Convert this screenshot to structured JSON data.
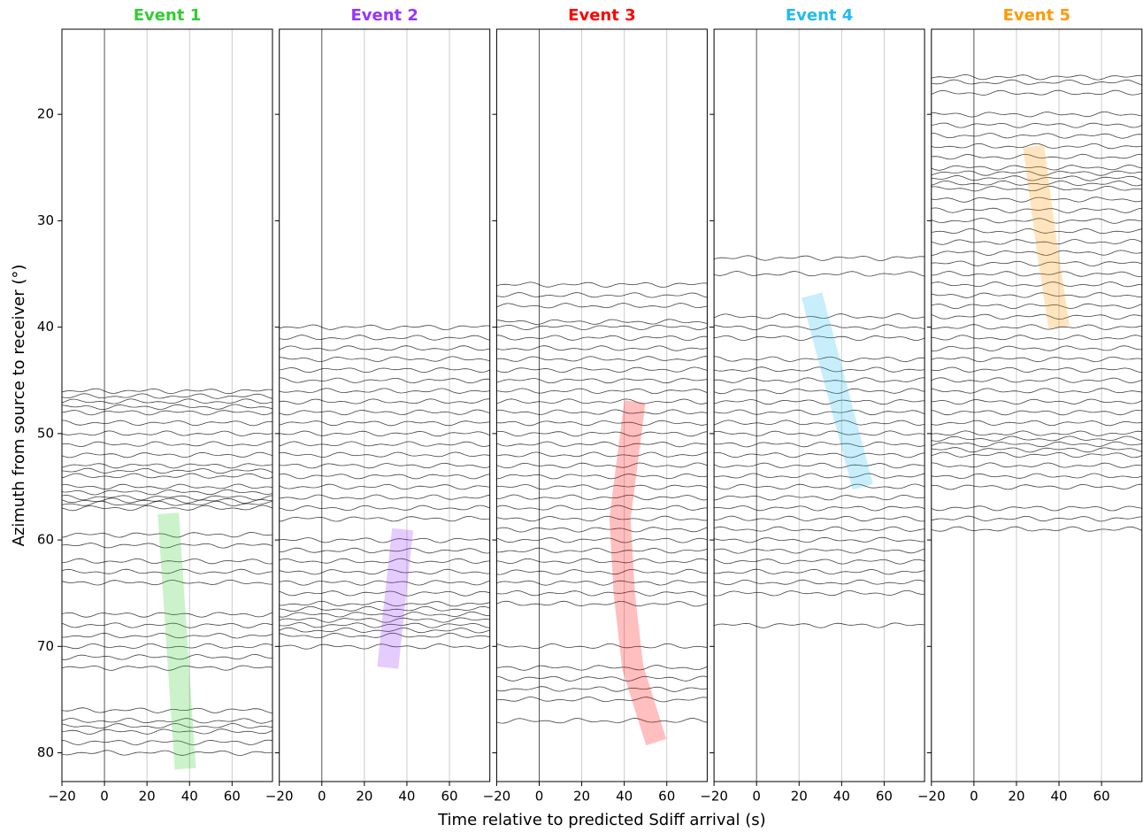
{
  "chart_data": [
    {
      "type": "wiggle",
      "title": "Event 1",
      "title_color": "#33cc33",
      "y_label": "Azimuth from source to receiver (°)",
      "xlim": [
        -20,
        79
      ],
      "xticks": [
        {
          "value": -20,
          "label": "−20"
        },
        0,
        20,
        40,
        60
      ],
      "ylim": [
        12,
        82.7
      ],
      "invert_y": true,
      "yticks": [
        20,
        30,
        40,
        50,
        60,
        70,
        80
      ],
      "show_ytick_labels": true,
      "traces": [
        46,
        46.5,
        47,
        47.5,
        48,
        49,
        50,
        51,
        52,
        53,
        53.5,
        54,
        55,
        55.5,
        56,
        56.3,
        56.6,
        57,
        59.5,
        60.5,
        62,
        63,
        64,
        67,
        68,
        69,
        70,
        71,
        72,
        76,
        77,
        77.5,
        78,
        79,
        80
      ],
      "trace_color": "#000000",
      "band": {
        "x": [
          30,
          38
        ],
        "y": [
          57.5,
          81.5
        ]
      },
      "band_color": "#33cc33"
    },
    {
      "type": "wiggle",
      "title": "Event 2",
      "title_color": "#9933ff",
      "xlim": [
        -20,
        79
      ],
      "xticks": [
        {
          "value": -20,
          "label": "−20"
        },
        0,
        20,
        40,
        60
      ],
      "ylim": [
        12,
        82.7
      ],
      "invert_y": true,
      "yticks": [
        20,
        30,
        40,
        50,
        60,
        70,
        80
      ],
      "show_ytick_labels": false,
      "traces": [
        40,
        41,
        42,
        43,
        44,
        45,
        46,
        47,
        48,
        49,
        50,
        51,
        52,
        53,
        54,
        55,
        56,
        57,
        58,
        60,
        61,
        62,
        63,
        64,
        65,
        66,
        66.5,
        67,
        67.5,
        68,
        68.5,
        69,
        70
      ],
      "trace_color": "#000000",
      "band": {
        "x": [
          38,
          31
        ],
        "y": [
          59,
          72
        ]
      },
      "band_color": "#9933ff"
    },
    {
      "type": "wiggle",
      "title": "Event 3",
      "title_color": "#ff0000",
      "x_label": "Time relative to predicted Sdiff arrival (s)",
      "xlim": [
        -20,
        79
      ],
      "xticks": [
        {
          "value": -20,
          "label": "−20"
        },
        0,
        20,
        40,
        60
      ],
      "ylim": [
        12,
        82.7
      ],
      "invert_y": true,
      "yticks": [
        20,
        30,
        40,
        50,
        60,
        70,
        80
      ],
      "show_ytick_labels": false,
      "traces": [
        36,
        37,
        38,
        39.5,
        40,
        41,
        42,
        43,
        44,
        45,
        46,
        47,
        48,
        49,
        50,
        51,
        52,
        53,
        54,
        55,
        56,
        57,
        58,
        59,
        60,
        61,
        62,
        63,
        64,
        65,
        66,
        70,
        72,
        73,
        74,
        75,
        77
      ],
      "trace_color": "#000000",
      "band": {
        "x": [
          45,
          38,
          40,
          44,
          55
        ],
        "y": [
          47,
          58,
          65,
          72,
          79
        ]
      },
      "band_color": "#ff0000"
    },
    {
      "type": "wiggle",
      "title": "Event 4",
      "title_color": "#22bbee",
      "xlim": [
        -20,
        79
      ],
      "xticks": [
        {
          "value": -20,
          "label": "−20"
        },
        0,
        20,
        40,
        60
      ],
      "ylim": [
        12,
        82.7
      ],
      "invert_y": true,
      "yticks": [
        20,
        30,
        40,
        50,
        60,
        70,
        80
      ],
      "show_ytick_labels": false,
      "traces": [
        33.5,
        35,
        39,
        40,
        41,
        43,
        44,
        45,
        46,
        47,
        48,
        49,
        50,
        51,
        52,
        53,
        54,
        55,
        56,
        57,
        58,
        59,
        60,
        61,
        62,
        63,
        64,
        65,
        68
      ],
      "trace_color": "#000000",
      "band": {
        "x": [
          26,
          50
        ],
        "y": [
          37,
          55
        ]
      },
      "band_color": "#22bbee"
    },
    {
      "type": "wiggle",
      "title": "Event 5",
      "title_color": "#ff9900",
      "xlim": [
        -20,
        79
      ],
      "xticks": [
        {
          "value": -20,
          "label": "−20"
        },
        0,
        20,
        40,
        60
      ],
      "ylim": [
        12,
        82.7
      ],
      "invert_y": true,
      "yticks": [
        20,
        30,
        40,
        50,
        60,
        70,
        80
      ],
      "show_ytick_labels": false,
      "traces": [
        16.5,
        17,
        18,
        20,
        21,
        22,
        23,
        24,
        25,
        25.5,
        26,
        26.5,
        27,
        28,
        29,
        30,
        31,
        32,
        33,
        34,
        35,
        36,
        37,
        38,
        39,
        40,
        41,
        42,
        43,
        44,
        45,
        46,
        47,
        48,
        49,
        50,
        50.5,
        51,
        51.5,
        52,
        53,
        54,
        55,
        57,
        58,
        59
      ],
      "trace_color": "#000000",
      "band": {
        "x": [
          28,
          34,
          40
        ],
        "y": [
          23,
          32,
          40
        ]
      },
      "band_color": "#ff9900"
    }
  ]
}
